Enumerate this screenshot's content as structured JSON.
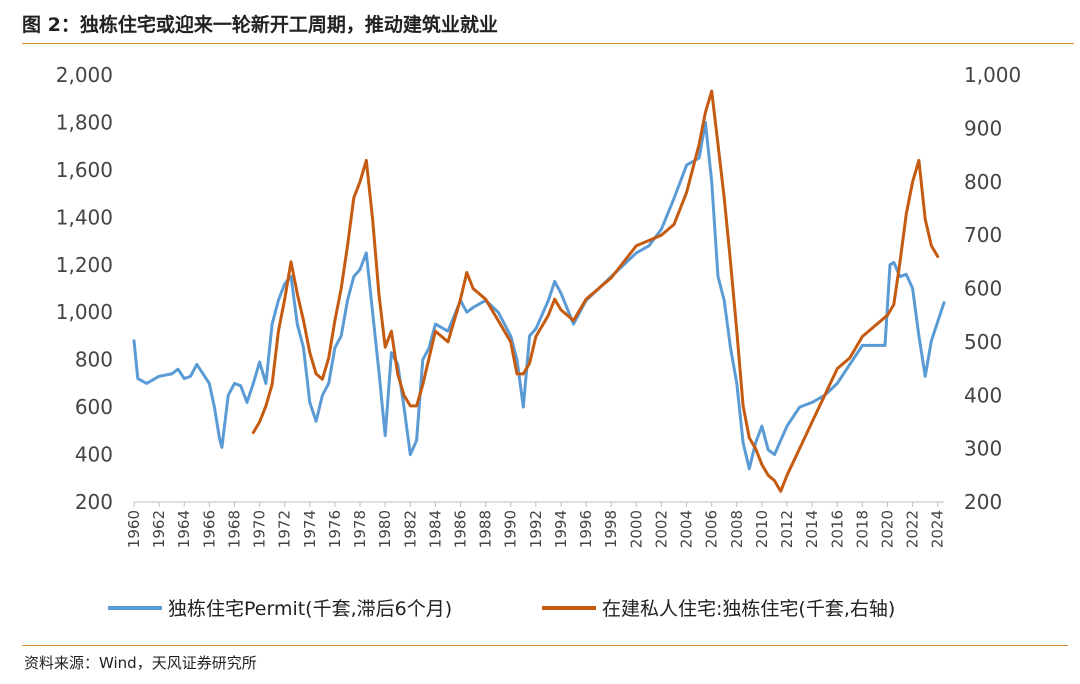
{
  "title": "图 2：独栋住宅或迎来一轮新开工周期，推动建筑业就业",
  "source": "资料来源：Wind，天风证券研究所",
  "colors": {
    "left_series": "#5b9bd5",
    "right_series": "#c55a11",
    "rule": "#d58a3a"
  },
  "chart_data": {
    "type": "line",
    "title": "图 2：独栋住宅或迎来一轮新开工周期，推动建筑业就业",
    "x_range": [
      1960,
      2024.5
    ],
    "x_tick_labels": [
      "1960",
      "1962",
      "1964",
      "1966",
      "1968",
      "1970",
      "1972",
      "1974",
      "1976",
      "1978",
      "1980",
      "1982",
      "1984",
      "1986",
      "1988",
      "1990",
      "1992",
      "1994",
      "1996",
      "1998",
      "2000",
      "2002",
      "2004",
      "2006",
      "2008",
      "2010",
      "2012",
      "2014",
      "2016",
      "2018",
      "2020",
      "2022",
      "2024"
    ],
    "y_left": {
      "min": 200,
      "max": 2000,
      "tick_labels": [
        "200",
        "400",
        "600",
        "800",
        "1,000",
        "1,200",
        "1,400",
        "1,600",
        "1,800",
        "2,000"
      ]
    },
    "y_right": {
      "min": 200,
      "max": 1000,
      "tick_labels": [
        "200",
        "300",
        "400",
        "500",
        "600",
        "700",
        "800",
        "900",
        "1,000"
      ]
    },
    "legend_position": "bottom",
    "series": [
      {
        "name": "独栋住宅Permit(千套,滞后6个月)",
        "axis": "left",
        "x": [
          1960,
          1960.3,
          1961,
          1962,
          1963,
          1963.5,
          1964,
          1964.5,
          1965,
          1965.5,
          1966,
          1966.4,
          1966.8,
          1967,
          1967.5,
          1968,
          1968.5,
          1969,
          1969.5,
          1970,
          1970.5,
          1971,
          1971.5,
          1972,
          1972.5,
          1973,
          1973.5,
          1974,
          1974.5,
          1975,
          1975.5,
          1976,
          1976.5,
          1977,
          1977.5,
          1978,
          1978.5,
          1979,
          1979.5,
          1980,
          1980.5,
          1981,
          1981.5,
          1982,
          1982.5,
          1983,
          1983.5,
          1984,
          1985,
          1986,
          1986.5,
          1987,
          1988,
          1989,
          1990,
          1990.5,
          1991,
          1991.5,
          1992,
          1993,
          1993.5,
          1994,
          1995,
          1996,
          1997,
          1998,
          1999,
          2000,
          2001,
          2002,
          2003,
          2004,
          2005,
          2005.5,
          2006,
          2006.5,
          2007,
          2007.5,
          2008,
          2008.5,
          2009,
          2009.5,
          2010,
          2010.5,
          2011,
          2011.5,
          2012,
          2013,
          2014,
          2015,
          2016,
          2017,
          2018,
          2019,
          2019.8,
          2020.2,
          2020.5,
          2021,
          2021.5,
          2022,
          2022.5,
          2023,
          2023.5,
          2024,
          2024.5
        ],
        "values": [
          880,
          720,
          700,
          730,
          740,
          760,
          720,
          730,
          780,
          740,
          700,
          600,
          470,
          430,
          650,
          700,
          690,
          620,
          700,
          790,
          700,
          950,
          1050,
          1120,
          1150,
          950,
          850,
          620,
          540,
          650,
          700,
          850,
          900,
          1050,
          1150,
          1180,
          1250,
          1000,
          750,
          480,
          830,
          780,
          600,
          400,
          460,
          800,
          850,
          950,
          920,
          1050,
          1000,
          1020,
          1050,
          1000,
          900,
          800,
          600,
          900,
          930,
          1050,
          1130,
          1080,
          950,
          1050,
          1100,
          1150,
          1200,
          1250,
          1280,
          1350,
          1480,
          1620,
          1650,
          1800,
          1550,
          1150,
          1050,
          850,
          700,
          450,
          340,
          450,
          520,
          420,
          400,
          460,
          520,
          600,
          620,
          650,
          700,
          780,
          860,
          860,
          860,
          1200,
          1210,
          1150,
          1160,
          1100,
          900,
          730,
          880,
          960,
          1040
        ]
      },
      {
        "name": "在建私人住宅:独栋住宅(千套,右轴)",
        "axis": "right",
        "x": [
          1969.5,
          1970,
          1970.5,
          1971,
          1971.5,
          1972,
          1972.5,
          1973,
          1973.5,
          1974,
          1974.5,
          1975,
          1975.5,
          1976,
          1976.5,
          1977,
          1977.5,
          1978,
          1978.5,
          1979,
          1979.5,
          1980,
          1980.5,
          1981,
          1981.5,
          1982,
          1982.5,
          1983,
          1983.5,
          1984,
          1985,
          1986,
          1986.5,
          1987,
          1988,
          1989,
          1990,
          1990.5,
          1991,
          1991.5,
          1992,
          1993,
          1993.5,
          1994,
          1995,
          1996,
          1997,
          1998,
          1999,
          2000,
          2001,
          2002,
          2003,
          2004,
          2005,
          2005.5,
          2006,
          2006.5,
          2007,
          2007.5,
          2008,
          2008.5,
          2009,
          2009.5,
          2010,
          2010.5,
          2011,
          2011.5,
          2012,
          2013,
          2014,
          2015,
          2016,
          2017,
          2018,
          2019,
          2020,
          2020.5,
          2021,
          2021.5,
          2022,
          2022.5,
          2023,
          2023.5,
          2024
        ],
        "values": [
          330,
          350,
          380,
          420,
          520,
          580,
          650,
          590,
          540,
          480,
          440,
          430,
          470,
          540,
          600,
          680,
          770,
          800,
          840,
          730,
          590,
          490,
          520,
          440,
          400,
          380,
          380,
          420,
          470,
          520,
          500,
          580,
          630,
          600,
          580,
          540,
          500,
          440,
          440,
          460,
          510,
          550,
          580,
          560,
          540,
          580,
          600,
          620,
          650,
          680,
          690,
          700,
          720,
          780,
          870,
          930,
          970,
          870,
          770,
          650,
          520,
          380,
          320,
          300,
          270,
          250,
          240,
          220,
          250,
          300,
          350,
          400,
          450,
          470,
          510,
          530,
          550,
          570,
          650,
          740,
          800,
          840,
          730,
          680,
          660
        ]
      }
    ]
  }
}
